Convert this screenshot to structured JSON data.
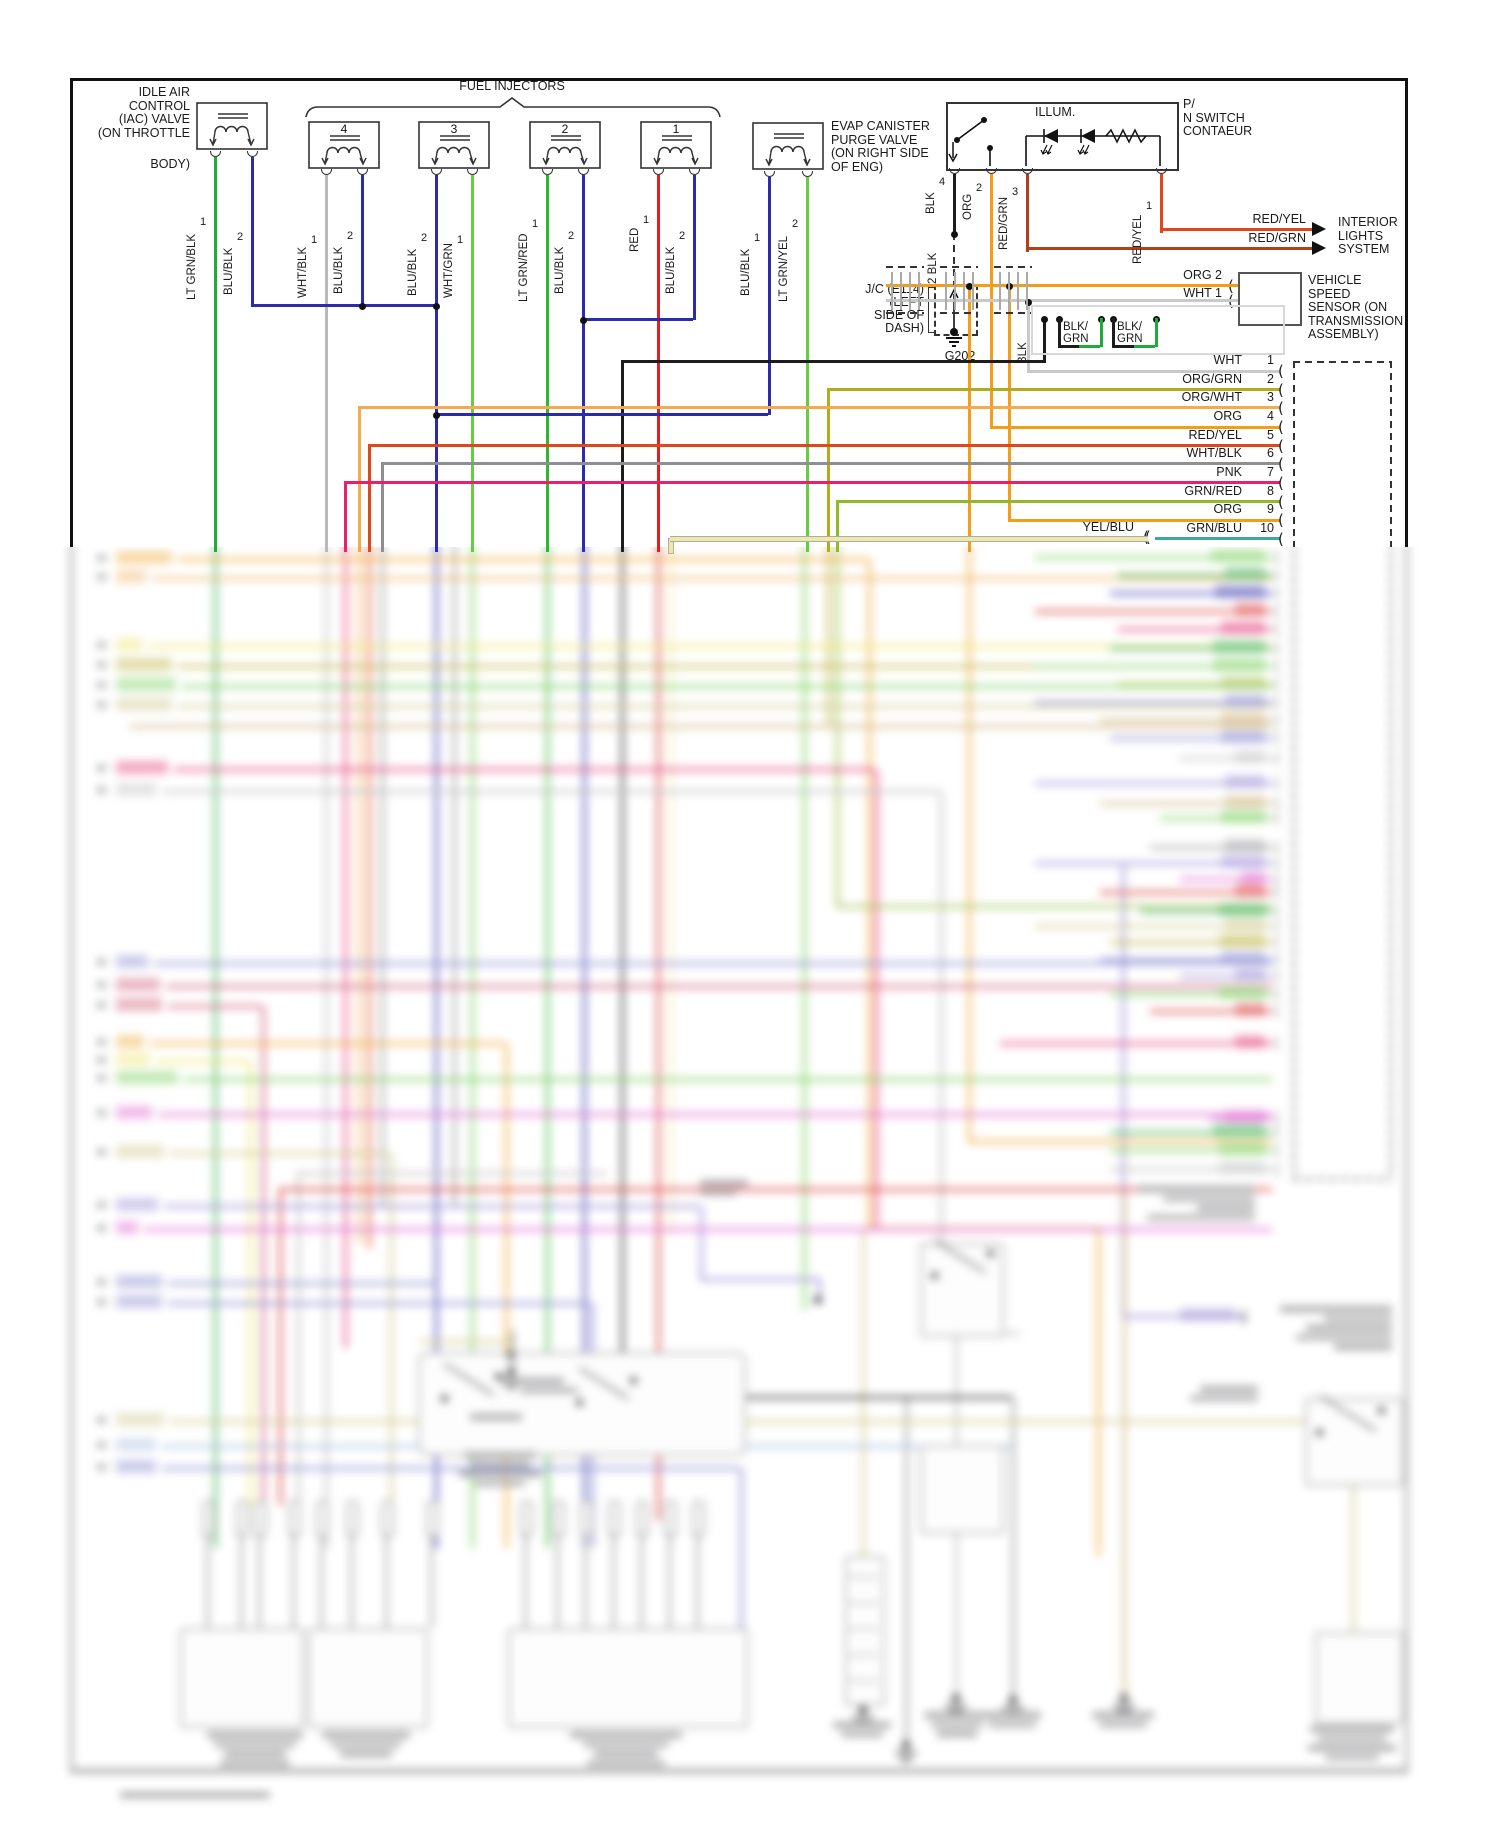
{
  "page": {
    "background": "#ffffff"
  },
  "colors": {
    "green": "#22a93c",
    "ltgreen": "#66cc41",
    "midgreen": "#2fb72f",
    "blue": "#2b2bb0",
    "gray": "#b9b9bc",
    "dkgray": "#8f8f93",
    "red": "#e01f1f",
    "black": "#1c1c1c",
    "orange": "#f49d17",
    "redyel": "#e2471b",
    "redgrn": "#b13f1a",
    "olive": "#b4aa1e",
    "orgwht": "#f2ab4e",
    "pink": "#ea2168",
    "grnred": "#92b82e",
    "teal": "#3fa89d",
    "yelblu": "#eee9a8",
    "wht": "#c9c9c9",
    "violet": "#8f7fd4",
    "magenta": "#e24fd0",
    "crimson": "#cf4468",
    "yellow": "#ece24e",
    "khaki": "#c9c27a",
    "tan": "#c9a96a",
    "blueviolet": "#7b7bd0",
    "paleblue": "#9fb7e0",
    "frame": "#111111"
  },
  "iac": {
    "label": "IDLE AIR\nCONTROL\n(IAC) VALVE\n(ON THROTTLE",
    "label2": "BODY)",
    "wires": [
      {
        "name": "LT GRN/BLK",
        "pin": "1"
      },
      {
        "name": "BLU/BLK",
        "pin": "2"
      }
    ]
  },
  "injectors": {
    "title": "FUEL INJECTORS",
    "numbers": [
      "4",
      "3",
      "2",
      "1"
    ],
    "wires": [
      {
        "name": "WHT/BLK",
        "pin": "1"
      },
      {
        "name": "BLU/BLK",
        "pin": "2"
      },
      {
        "name": "BLU/BLK",
        "pin": "2"
      },
      {
        "name": "WHT/GRN",
        "pin": "1"
      },
      {
        "name": "LT GRN/RED",
        "pin": "1"
      },
      {
        "name": "BLU/BLK",
        "pin": "2"
      },
      {
        "name": "RED",
        "pin": "1"
      },
      {
        "name": "BLU/BLK",
        "pin": "2"
      }
    ]
  },
  "evap": {
    "label": "EVAP CANISTER\nPURGE VALVE\n(ON RIGHT SIDE\nOF ENG)",
    "wires": [
      {
        "name": "BLU/BLK",
        "pin": "1"
      },
      {
        "name": "LT GRN/YEL",
        "pin": "2"
      }
    ]
  },
  "illum": {
    "label": "ILLUM.",
    "pn_label": "P/\nN SWITCH\nCONTAEUR",
    "wires": [
      {
        "name": "BLK",
        "pin": "4"
      },
      {
        "name": "ORG",
        "pin": "2"
      },
      {
        "name": "RED/GRN",
        "pin": "3"
      },
      {
        "name": "RED/YEL",
        "pin": "1"
      }
    ]
  },
  "jc": {
    "label": "J/C (E114)\n(LEFT\nSIDE OF\nDASH)",
    "wire": "2 BLK",
    "ground": "G202"
  },
  "interior": {
    "label": "INTERIOR\nLIGHTS\nSYSTEM",
    "wires": [
      "RED/YEL",
      "RED/GRN"
    ]
  },
  "vss": {
    "label": "VEHICLE\nSPEED\nSENSOR (ON\nTRANSMISSION\nASSEMBLY)",
    "wires": [
      {
        "name": "ORG",
        "pin": "2"
      },
      {
        "name": "WHT",
        "pin": "1"
      }
    ],
    "shield_wire": "BLK",
    "ground_wires": [
      "BLK/\nGRN",
      "BLK/\nGRN"
    ]
  },
  "ecm": {
    "splice_label": "YEL/BLU",
    "pins": [
      {
        "name": "WHT",
        "pin": "1"
      },
      {
        "name": "ORG/GRN",
        "pin": "2"
      },
      {
        "name": "ORG/WHT",
        "pin": "3"
      },
      {
        "name": "ORG",
        "pin": "4"
      },
      {
        "name": "RED/YEL",
        "pin": "5"
      },
      {
        "name": "WHT/BLK",
        "pin": "6"
      },
      {
        "name": "PNK",
        "pin": "7"
      },
      {
        "name": "GRN/RED",
        "pin": "8"
      },
      {
        "name": "ORG",
        "pin": "9"
      },
      {
        "name": "GRN/BLU",
        "pin": "10"
      }
    ]
  }
}
